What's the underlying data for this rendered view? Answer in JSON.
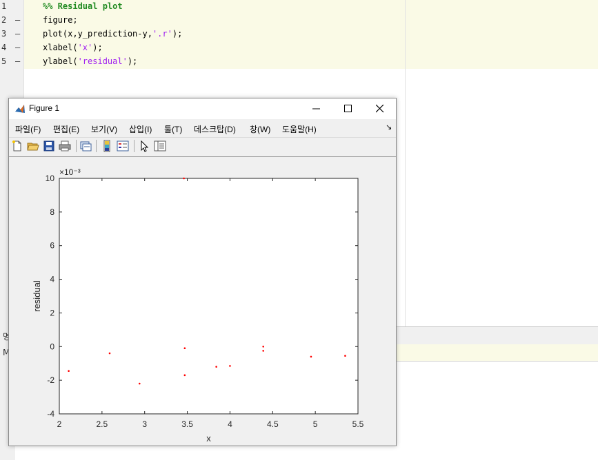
{
  "editor": {
    "line_numbers": [
      "1",
      "2",
      "3",
      "4",
      "5"
    ],
    "line2": "figure;",
    "line3_a": "plot(x,y_prediction-y,",
    "line3_b": "'.r'",
    "line3_c": ");",
    "line4_a": "xlabel(",
    "line4_b": "'x'",
    "line4_c": ");",
    "line5_a": "ylabel(",
    "line5_b": "'residual'",
    "line5_c": ");",
    "line1": "%% Residual plot"
  },
  "dock": {
    "glyph_top": "명",
    "glyph_bottom": "M"
  },
  "figure": {
    "title": "Figure 1",
    "menus": [
      "파일(F)",
      "편집(E)",
      "보기(V)",
      "삽입(I)",
      "툴(T)",
      "데스크탑(D)",
      "창(W)",
      "도움말(H)"
    ],
    "menu_overflow": "↘"
  },
  "chart_data": {
    "type": "scatter",
    "xlabel": "x",
    "ylabel": "residual",
    "exponent_label": "×10⁻³",
    "xlim": [
      2,
      5.5
    ],
    "ylim": [
      -4,
      10
    ],
    "xticks": [
      "2",
      "2.5",
      "3",
      "3.5",
      "4",
      "4.5",
      "5",
      "5.5"
    ],
    "yticks": [
      "-4",
      "-2",
      "0",
      "2",
      "4",
      "6",
      "8",
      "10"
    ],
    "marker_color": "#ff0000",
    "points": [
      {
        "x": 2.11,
        "y": -1.45
      },
      {
        "x": 2.59,
        "y": -0.4
      },
      {
        "x": 2.94,
        "y": -2.2
      },
      {
        "x": 3.46,
        "y": 10.0
      },
      {
        "x": 3.47,
        "y": -0.1
      },
      {
        "x": 3.47,
        "y": -1.7
      },
      {
        "x": 3.84,
        "y": -1.2
      },
      {
        "x": 4.0,
        "y": -1.15
      },
      {
        "x": 4.39,
        "y": 0.0
      },
      {
        "x": 4.39,
        "y": -0.25
      },
      {
        "x": 4.95,
        "y": -0.6
      },
      {
        "x": 5.35,
        "y": -0.55
      }
    ]
  }
}
